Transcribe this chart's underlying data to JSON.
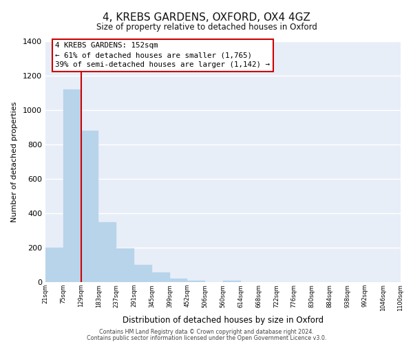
{
  "title": "4, KREBS GARDENS, OXFORD, OX4 4GZ",
  "subtitle": "Size of property relative to detached houses in Oxford",
  "xlabel": "Distribution of detached houses by size in Oxford",
  "ylabel": "Number of detached properties",
  "bar_values": [
    200,
    1120,
    880,
    350,
    195,
    100,
    55,
    20,
    10,
    0,
    10,
    0,
    0,
    0,
    0,
    0,
    0,
    0,
    0,
    0
  ],
  "bar_labels": [
    "21sqm",
    "75sqm",
    "129sqm",
    "183sqm",
    "237sqm",
    "291sqm",
    "345sqm",
    "399sqm",
    "452sqm",
    "506sqm",
    "560sqm",
    "614sqm",
    "668sqm",
    "722sqm",
    "776sqm",
    "830sqm",
    "884sqm",
    "938sqm",
    "992sqm",
    "1046sqm",
    "1100sqm"
  ],
  "bar_color": "#b8d4ea",
  "bar_edge_color": "#b8d4ea",
  "property_line_x": 2.0,
  "property_line_color": "#cc0000",
  "annotation_text": "4 KREBS GARDENS: 152sqm\n← 61% of detached houses are smaller (1,765)\n39% of semi-detached houses are larger (1,142) →",
  "annotation_box_facecolor": "#ffffff",
  "annotation_box_edgecolor": "#cc0000",
  "ylim": [
    0,
    1400
  ],
  "yticks": [
    0,
    200,
    400,
    600,
    800,
    1000,
    1200,
    1400
  ],
  "footer_line1": "Contains HM Land Registry data © Crown copyright and database right 2024.",
  "footer_line2": "Contains public sector information licensed under the Open Government Licence v3.0.",
  "bg_color": "#ffffff",
  "plot_bg_color": "#e8eef8",
  "grid_color": "#ffffff"
}
